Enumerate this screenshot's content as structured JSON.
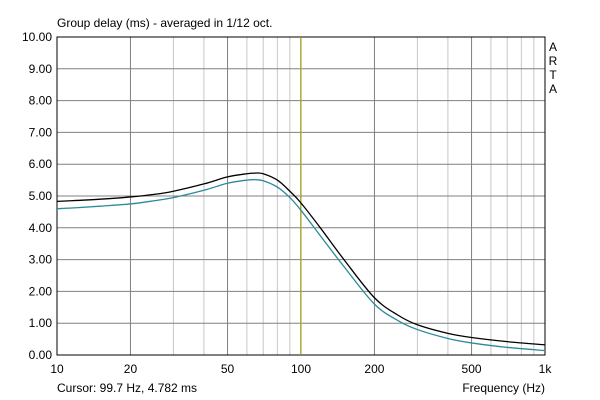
{
  "chart_data": {
    "type": "line",
    "title": "Group delay (ms) - averaged in 1/12 oct.",
    "xlabel": "Frequency (Hz)",
    "ylabel": "",
    "x_scale": "log",
    "xlim": [
      10,
      1000
    ],
    "ylim": [
      0,
      10
    ],
    "grid": true,
    "x_tick_labels": [
      "10",
      "20",
      "50",
      "100",
      "200",
      "500",
      "1k"
    ],
    "y_tick_labels": [
      "0.00",
      "1.00",
      "2.00",
      "3.00",
      "4.00",
      "5.00",
      "6.00",
      "7.00",
      "8.00",
      "9.00",
      "10.00"
    ],
    "brand_letters": [
      "A",
      "R",
      "T",
      "A"
    ],
    "cursor": {
      "x": 99.7,
      "label": "Cursor: 99.7 Hz, 4.782 ms",
      "color": "#b3a81a"
    },
    "series": [
      {
        "color": "#000000",
        "x": [
          10,
          12,
          15,
          20,
          25,
          30,
          40,
          50,
          60,
          65,
          70,
          80,
          90,
          100,
          120,
          150,
          200,
          250,
          300,
          400,
          500,
          700,
          1000
        ],
        "y": [
          4.83,
          4.86,
          4.9,
          4.97,
          5.05,
          5.15,
          5.38,
          5.6,
          5.7,
          5.72,
          5.7,
          5.5,
          5.15,
          4.78,
          4.0,
          3.0,
          1.8,
          1.25,
          0.95,
          0.68,
          0.55,
          0.42,
          0.32
        ]
      },
      {
        "color": "#2a8a99",
        "x": [
          10,
          12,
          15,
          20,
          25,
          30,
          40,
          50,
          60,
          65,
          70,
          80,
          90,
          100,
          120,
          150,
          200,
          250,
          300,
          400,
          500,
          700,
          1000
        ],
        "y": [
          4.6,
          4.63,
          4.68,
          4.75,
          4.85,
          4.95,
          5.18,
          5.4,
          5.5,
          5.51,
          5.48,
          5.28,
          4.95,
          4.55,
          3.75,
          2.78,
          1.6,
          1.08,
          0.8,
          0.52,
          0.38,
          0.24,
          0.14
        ]
      }
    ]
  }
}
